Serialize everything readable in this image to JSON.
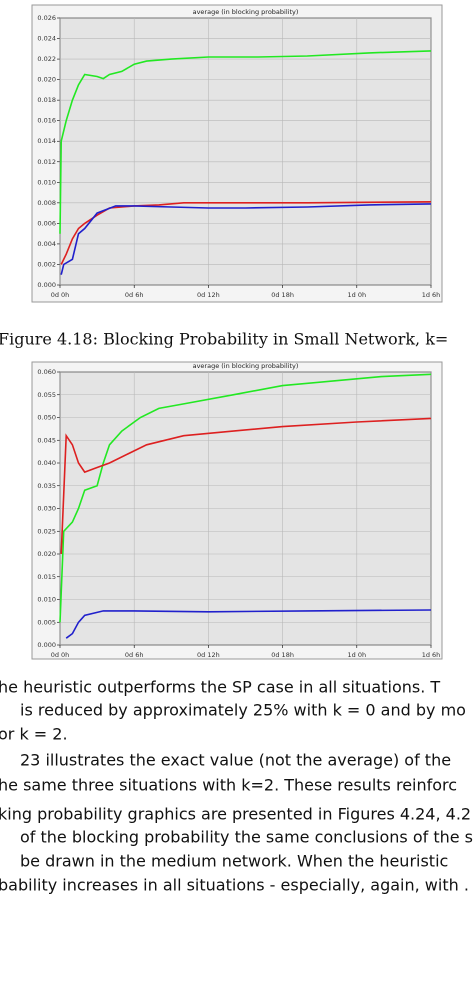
{
  "chart_data": [
    {
      "type": "line",
      "title": "average (in blocking probability)",
      "xlim": [
        0,
        30
      ],
      "xticks": [
        {
          "value": 0,
          "label": "0d 0h"
        },
        {
          "value": 6,
          "label": "0d 6h"
        },
        {
          "value": 12,
          "label": "0d 12h"
        },
        {
          "value": 18,
          "label": "0d 18h"
        },
        {
          "value": 24,
          "label": "1d 0h"
        },
        {
          "value": 30,
          "label": "1d 6h"
        }
      ],
      "ylim": [
        0,
        0.026
      ],
      "yticks": [
        {
          "value": 0,
          "label": "0.000"
        },
        {
          "value": 0.002,
          "label": "0.002"
        },
        {
          "value": 0.004,
          "label": "0.004"
        },
        {
          "value": 0.006,
          "label": "0.006"
        },
        {
          "value": 0.008,
          "label": "0.008"
        },
        {
          "value": 0.01,
          "label": "0.010"
        },
        {
          "value": 0.012,
          "label": "0.012"
        },
        {
          "value": 0.014,
          "label": "0.014"
        },
        {
          "value": 0.016,
          "label": "0.016"
        },
        {
          "value": 0.018,
          "label": "0.018"
        },
        {
          "value": 0.02,
          "label": "0.020"
        },
        {
          "value": 0.022,
          "label": "0.022"
        },
        {
          "value": 0.024,
          "label": "0.024"
        },
        {
          "value": 0.026,
          "label": "0.026"
        }
      ],
      "grid": true,
      "series": [
        {
          "color": "#22e822",
          "x": [
            0,
            0.1,
            0.5,
            1,
            1.5,
            2,
            3,
            3.5,
            4,
            5,
            6,
            7,
            9,
            12,
            16,
            20,
            25,
            30
          ],
          "values": [
            0.005,
            0.014,
            0.016,
            0.018,
            0.0195,
            0.0205,
            0.0203,
            0.0201,
            0.0205,
            0.0208,
            0.0215,
            0.0218,
            0.022,
            0.0222,
            0.0222,
            0.0223,
            0.0226,
            0.0228
          ]
        },
        {
          "color": "#dd2020",
          "x": [
            0.1,
            0.5,
            1,
            1.5,
            2,
            3,
            4,
            6,
            8,
            10,
            20,
            30
          ],
          "values": [
            0.002,
            0.003,
            0.0045,
            0.0055,
            0.006,
            0.0068,
            0.0075,
            0.0077,
            0.0078,
            0.008,
            0.008,
            0.0081
          ]
        },
        {
          "color": "#2020cc",
          "x": [
            0.1,
            0.3,
            1,
            1.5,
            2,
            3,
            4.5,
            6,
            9,
            12,
            15,
            20,
            25,
            30
          ],
          "values": [
            0.001,
            0.002,
            0.0025,
            0.005,
            0.0055,
            0.007,
            0.0077,
            0.0077,
            0.0076,
            0.0075,
            0.0075,
            0.0076,
            0.0078,
            0.0079
          ]
        }
      ]
    },
    {
      "type": "line",
      "title": "average (in blocking probability)",
      "xlim": [
        0,
        30
      ],
      "xticks": [
        {
          "value": 0,
          "label": "0d 0h"
        },
        {
          "value": 6,
          "label": "0d 6h"
        },
        {
          "value": 12,
          "label": "0d 12h"
        },
        {
          "value": 18,
          "label": "0d 18h"
        },
        {
          "value": 24,
          "label": "1d 0h"
        },
        {
          "value": 30,
          "label": "1d 6h"
        }
      ],
      "ylim": [
        0,
        0.06
      ],
      "yticks": [
        {
          "value": 0,
          "label": "0.000"
        },
        {
          "value": 0.005,
          "label": "0.005"
        },
        {
          "value": 0.01,
          "label": "0.010"
        },
        {
          "value": 0.015,
          "label": "0.015"
        },
        {
          "value": 0.02,
          "label": "0.020"
        },
        {
          "value": 0.025,
          "label": "0.025"
        },
        {
          "value": 0.03,
          "label": "0.030"
        },
        {
          "value": 0.035,
          "label": "0.035"
        },
        {
          "value": 0.04,
          "label": "0.040"
        },
        {
          "value": 0.045,
          "label": "0.045"
        },
        {
          "value": 0.05,
          "label": "0.050"
        },
        {
          "value": 0.055,
          "label": "0.055"
        },
        {
          "value": 0.06,
          "label": "0.060"
        }
      ],
      "grid": true,
      "series": [
        {
          "color": "#22e822",
          "x": [
            0,
            0.3,
            1,
            1.5,
            2,
            3,
            3.5,
            4,
            5,
            6.5,
            8,
            10,
            14,
            18,
            22,
            26,
            30
          ],
          "values": [
            0.005,
            0.025,
            0.027,
            0.03,
            0.034,
            0.035,
            0.04,
            0.044,
            0.047,
            0.05,
            0.052,
            0.053,
            0.055,
            0.057,
            0.058,
            0.059,
            0.0595
          ]
        },
        {
          "color": "#dd2020",
          "x": [
            0.1,
            0.5,
            1,
            1.5,
            2,
            3,
            4,
            5.5,
            7,
            10,
            14,
            18,
            24,
            30
          ],
          "values": [
            0.02,
            0.046,
            0.044,
            0.04,
            0.038,
            0.039,
            0.04,
            0.042,
            0.044,
            0.046,
            0.047,
            0.048,
            0.049,
            0.0498
          ]
        },
        {
          "color": "#2020cc",
          "x": [
            0.5,
            1,
            1.5,
            2,
            3.5,
            6,
            12,
            20,
            30
          ],
          "values": [
            0.0015,
            0.0025,
            0.005,
            0.0065,
            0.0075,
            0.0075,
            0.0073,
            0.0075,
            0.0077
          ]
        }
      ]
    }
  ],
  "caption": "Figure 4.18: Blocking Probability in Small Network, k=",
  "text_lines": [
    "he heuristic outperforms the SP case in all situations.  T",
    "is reduced by approximately 25% with k = 0 and by mo",
    "or k = 2.",
    "23 illustrates the exact value (not the average) of the",
    "he same three situations with k=2.  These results reinforc",
    "king probability graphics are presented in Figures 4.24, 4.2",
    "of the blocking probability the same conclusions of the s",
    "be drawn in the medium network.  When the heuristic",
    "bability increases in all situations - especially, again, with ."
  ]
}
